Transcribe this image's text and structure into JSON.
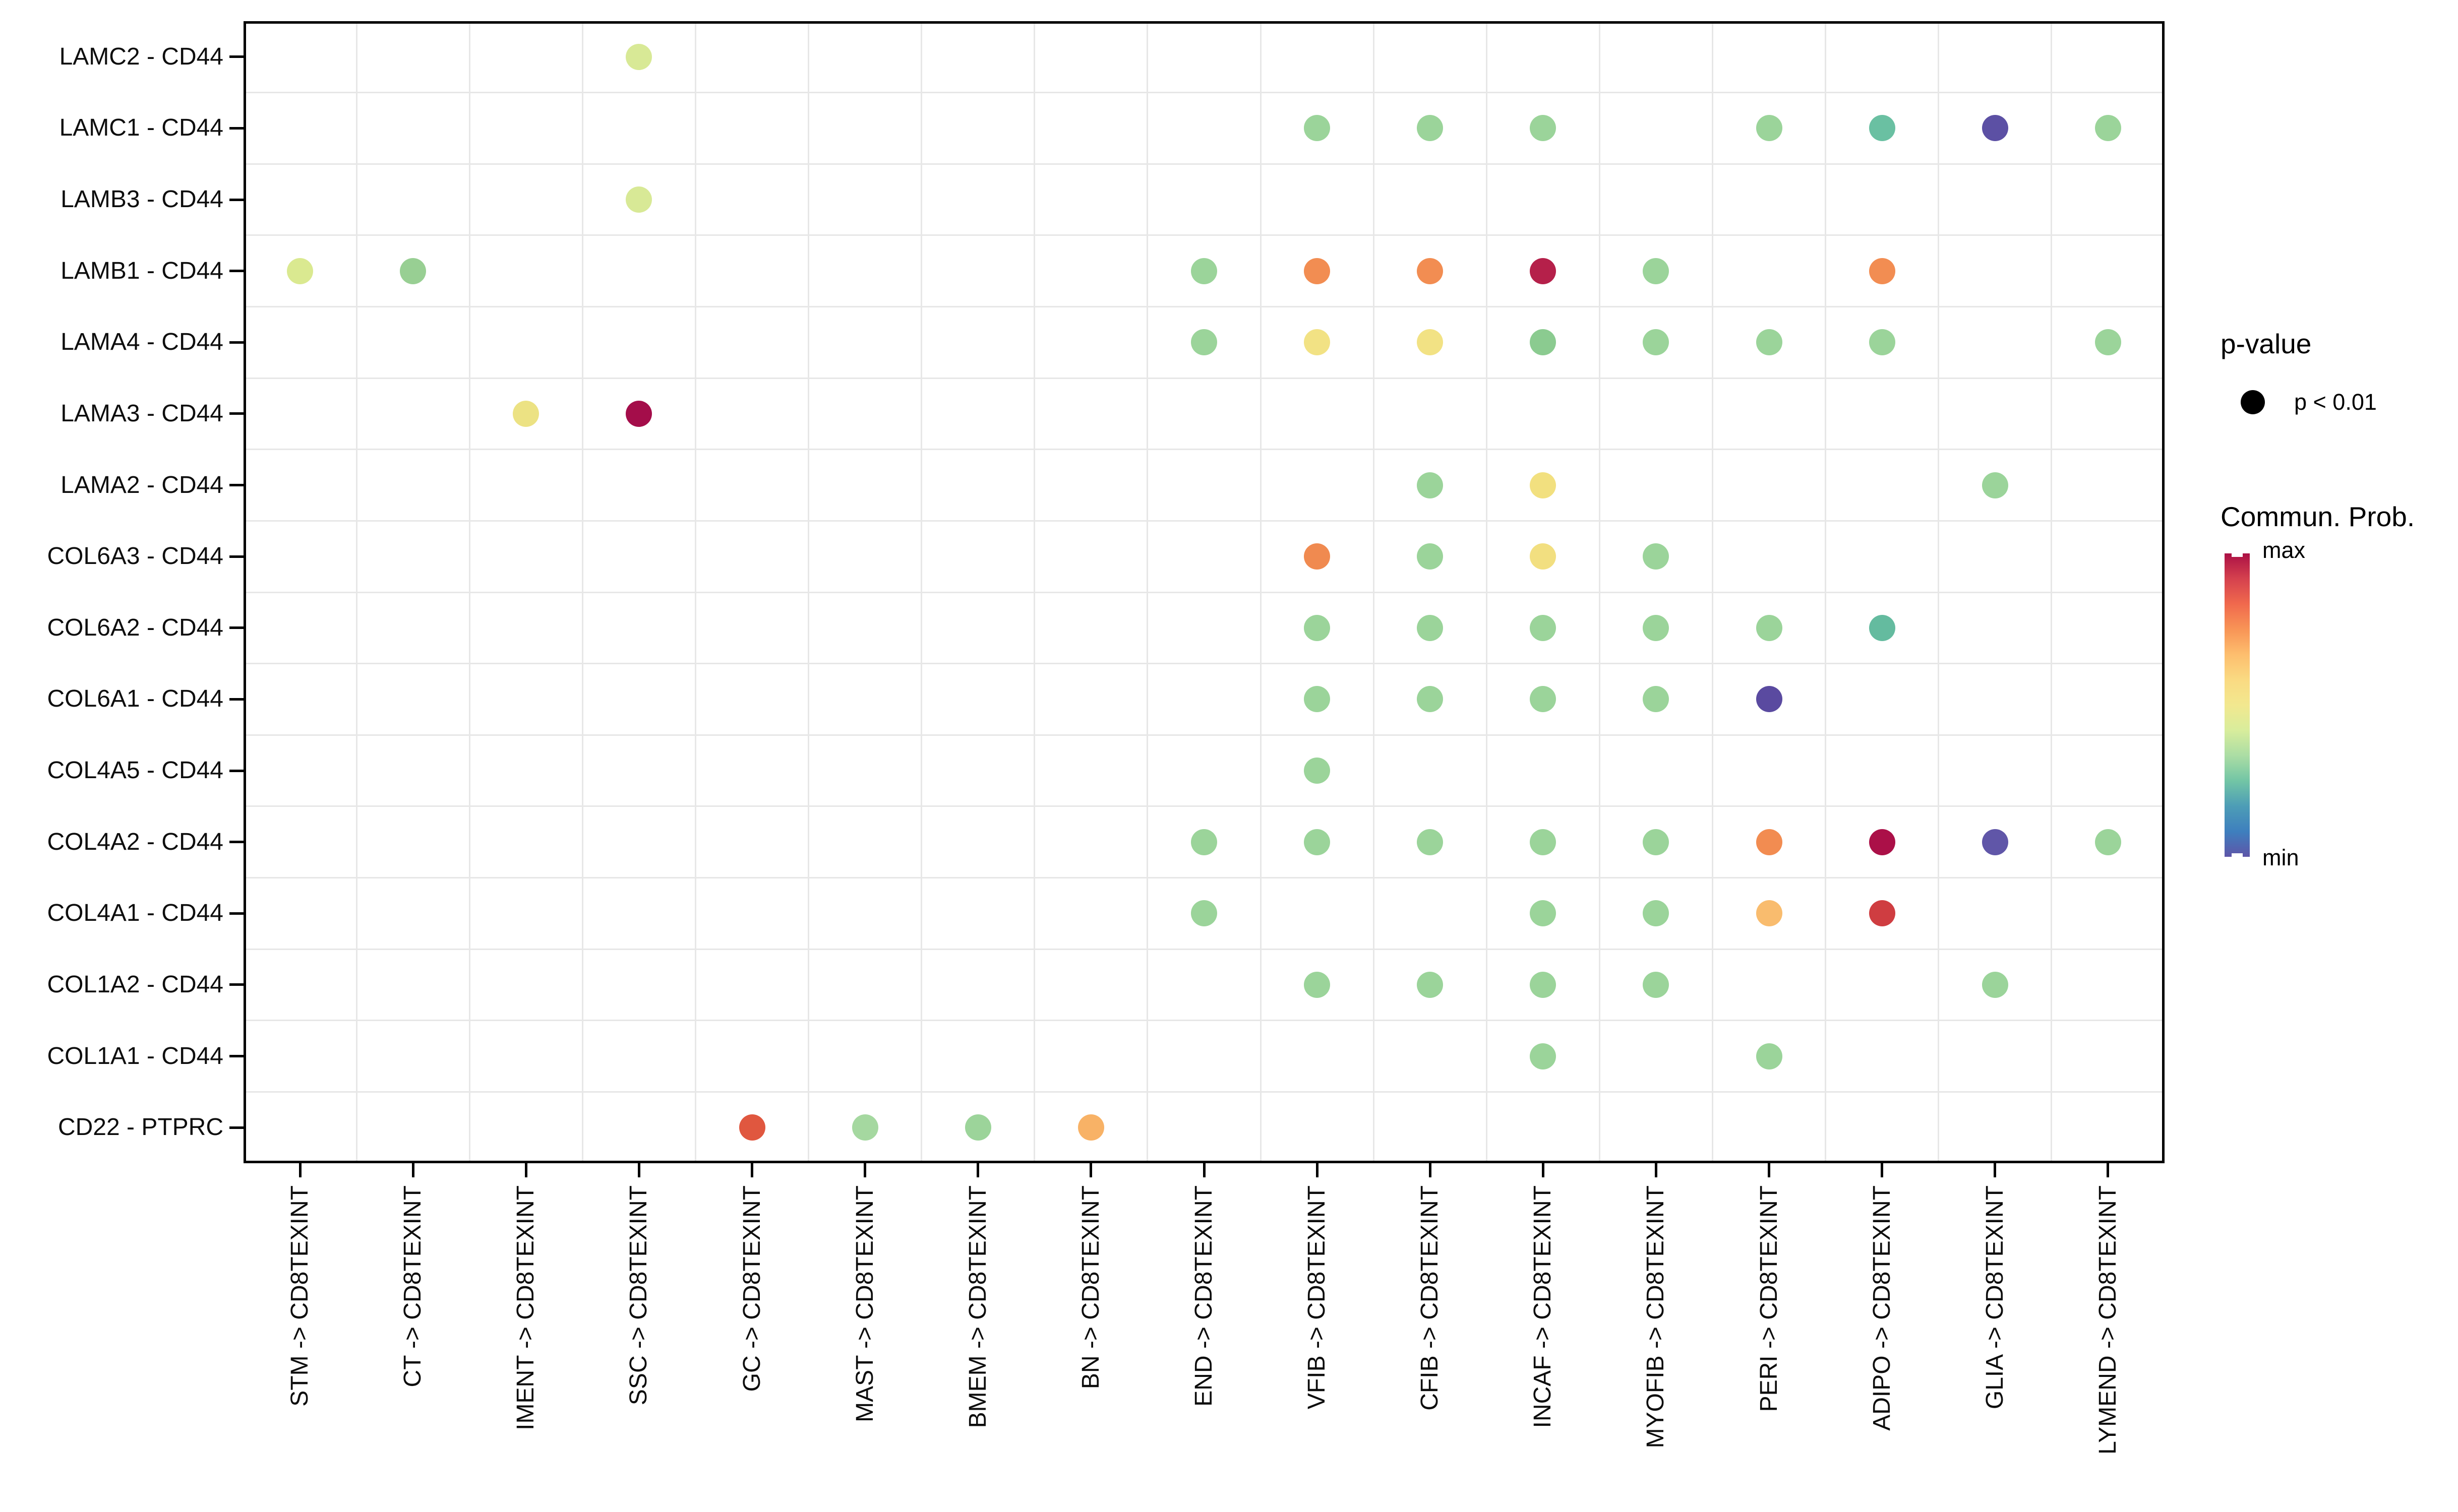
{
  "chart_data": {
    "type": "scatter",
    "subtype": "dot-matrix-bubble-plot",
    "x_categories": [
      "STM -> CD8TEXINT",
      "CT -> CD8TEXINT",
      "IMENT -> CD8TEXINT",
      "SSC -> CD8TEXINT",
      "GC -> CD8TEXINT",
      "MAST -> CD8TEXINT",
      "BMEM -> CD8TEXINT",
      "BN -> CD8TEXINT",
      "END -> CD8TEXINT",
      "VFIB -> CD8TEXINT",
      "CFIB -> CD8TEXINT",
      "INCAF -> CD8TEXINT",
      "MYOFIB -> CD8TEXINT",
      "PERI -> CD8TEXINT",
      "ADIPO -> CD8TEXINT",
      "GLIA -> CD8TEXINT",
      "LYMEND -> CD8TEXINT"
    ],
    "y_categories": [
      "LAMC2 - CD44",
      "LAMC1 - CD44",
      "LAMB3 - CD44",
      "LAMB1 - CD44",
      "LAMA4 - CD44",
      "LAMA3 - CD44",
      "LAMA2 - CD44",
      "COL6A3 - CD44",
      "COL6A2 - CD44",
      "COL6A1 - CD44",
      "COL4A5 - CD44",
      "COL4A2 - CD44",
      "COL4A1 - CD44",
      "COL1A2 - CD44",
      "COL1A1 - CD44",
      "CD22 - PTPRC"
    ],
    "grid": "boundary lines between categories",
    "legend_position": "right",
    "points": [
      {
        "row": "LAMC2 - CD44",
        "col": "SSC -> CD8TEXINT",
        "color": "#d8e996"
      },
      {
        "row": "LAMC1 - CD44",
        "col": "VFIB -> CD8TEXINT",
        "color": "#9bd49a"
      },
      {
        "row": "LAMC1 - CD44",
        "col": "CFIB -> CD8TEXINT",
        "color": "#9bd49a"
      },
      {
        "row": "LAMC1 - CD44",
        "col": "INCAF -> CD8TEXINT",
        "color": "#9bd49a"
      },
      {
        "row": "LAMC1 - CD44",
        "col": "PERI -> CD8TEXINT",
        "color": "#9bd49a"
      },
      {
        "row": "LAMC1 - CD44",
        "col": "ADIPO -> CD8TEXINT",
        "color": "#6ac0a2"
      },
      {
        "row": "LAMC1 - CD44",
        "col": "GLIA -> CD8TEXINT",
        "color": "#5c50a4"
      },
      {
        "row": "LAMC1 - CD44",
        "col": "LYMEND -> CD8TEXINT",
        "color": "#9bd49a"
      },
      {
        "row": "LAMB3 - CD44",
        "col": "SSC -> CD8TEXINT",
        "color": "#d8e996"
      },
      {
        "row": "LAMB1 - CD44",
        "col": "STM -> CD8TEXINT",
        "color": "#dae990"
      },
      {
        "row": "LAMB1 - CD44",
        "col": "CT -> CD8TEXINT",
        "color": "#98cf93"
      },
      {
        "row": "LAMB1 - CD44",
        "col": "END -> CD8TEXINT",
        "color": "#9bd49a"
      },
      {
        "row": "LAMB1 - CD44",
        "col": "VFIB -> CD8TEXINT",
        "color": "#f28d52"
      },
      {
        "row": "LAMB1 - CD44",
        "col": "CFIB -> CD8TEXINT",
        "color": "#f28d52"
      },
      {
        "row": "LAMB1 - CD44",
        "col": "INCAF -> CD8TEXINT",
        "color": "#b5204a"
      },
      {
        "row": "LAMB1 - CD44",
        "col": "MYOFIB -> CD8TEXINT",
        "color": "#9bd49a"
      },
      {
        "row": "LAMB1 - CD44",
        "col": "ADIPO -> CD8TEXINT",
        "color": "#f28d52"
      },
      {
        "row": "LAMA4 - CD44",
        "col": "END -> CD8TEXINT",
        "color": "#9bd49a"
      },
      {
        "row": "LAMA4 - CD44",
        "col": "VFIB -> CD8TEXINT",
        "color": "#f2e284"
      },
      {
        "row": "LAMA4 - CD44",
        "col": "CFIB -> CD8TEXINT",
        "color": "#f2e284"
      },
      {
        "row": "LAMA4 - CD44",
        "col": "INCAF -> CD8TEXINT",
        "color": "#8bcb90"
      },
      {
        "row": "LAMA4 - CD44",
        "col": "MYOFIB -> CD8TEXINT",
        "color": "#9bd49a"
      },
      {
        "row": "LAMA4 - CD44",
        "col": "PERI -> CD8TEXINT",
        "color": "#9bd49a"
      },
      {
        "row": "LAMA4 - CD44",
        "col": "ADIPO -> CD8TEXINT",
        "color": "#9bd49a"
      },
      {
        "row": "LAMA4 - CD44",
        "col": "LYMEND -> CD8TEXINT",
        "color": "#9bd49a"
      },
      {
        "row": "LAMA3 - CD44",
        "col": "IMENT -> CD8TEXINT",
        "color": "#ece283"
      },
      {
        "row": "LAMA3 - CD44",
        "col": "SSC -> CD8TEXINT",
        "color": "#a40d4a"
      },
      {
        "row": "LAMA2 - CD44",
        "col": "CFIB -> CD8TEXINT",
        "color": "#9bd49a"
      },
      {
        "row": "LAMA2 - CD44",
        "col": "INCAF -> CD8TEXINT",
        "color": "#f2e07f"
      },
      {
        "row": "LAMA2 - CD44",
        "col": "GLIA -> CD8TEXINT",
        "color": "#9bd49a"
      },
      {
        "row": "COL6A3 - CD44",
        "col": "VFIB -> CD8TEXINT",
        "color": "#f08a50"
      },
      {
        "row": "COL6A3 - CD44",
        "col": "CFIB -> CD8TEXINT",
        "color": "#9bd49a"
      },
      {
        "row": "COL6A3 - CD44",
        "col": "INCAF -> CD8TEXINT",
        "color": "#f2df80"
      },
      {
        "row": "COL6A3 - CD44",
        "col": "MYOFIB -> CD8TEXINT",
        "color": "#9bd49a"
      },
      {
        "row": "COL6A2 - CD44",
        "col": "VFIB -> CD8TEXINT",
        "color": "#9bd49a"
      },
      {
        "row": "COL6A2 - CD44",
        "col": "CFIB -> CD8TEXINT",
        "color": "#9bd49a"
      },
      {
        "row": "COL6A2 - CD44",
        "col": "INCAF -> CD8TEXINT",
        "color": "#9bd49a"
      },
      {
        "row": "COL6A2 - CD44",
        "col": "MYOFIB -> CD8TEXINT",
        "color": "#9bd49a"
      },
      {
        "row": "COL6A2 - CD44",
        "col": "PERI -> CD8TEXINT",
        "color": "#9bd49a"
      },
      {
        "row": "COL6A2 - CD44",
        "col": "ADIPO -> CD8TEXINT",
        "color": "#64bb9f"
      },
      {
        "row": "COL6A1 - CD44",
        "col": "VFIB -> CD8TEXINT",
        "color": "#9bd49a"
      },
      {
        "row": "COL6A1 - CD44",
        "col": "CFIB -> CD8TEXINT",
        "color": "#9bd49a"
      },
      {
        "row": "COL6A1 - CD44",
        "col": "INCAF -> CD8TEXINT",
        "color": "#9bd49a"
      },
      {
        "row": "COL6A1 - CD44",
        "col": "MYOFIB -> CD8TEXINT",
        "color": "#9bd49a"
      },
      {
        "row": "COL6A1 - CD44",
        "col": "PERI -> CD8TEXINT",
        "color": "#5a4aa0"
      },
      {
        "row": "COL4A5 - CD44",
        "col": "VFIB -> CD8TEXINT",
        "color": "#9bd49a"
      },
      {
        "row": "COL4A2 - CD44",
        "col": "END -> CD8TEXINT",
        "color": "#9bd49a"
      },
      {
        "row": "COL4A2 - CD44",
        "col": "VFIB -> CD8TEXINT",
        "color": "#9bd49a"
      },
      {
        "row": "COL4A2 - CD44",
        "col": "CFIB -> CD8TEXINT",
        "color": "#9bd49a"
      },
      {
        "row": "COL4A2 - CD44",
        "col": "INCAF -> CD8TEXINT",
        "color": "#9bd49a"
      },
      {
        "row": "COL4A2 - CD44",
        "col": "MYOFIB -> CD8TEXINT",
        "color": "#9bd49a"
      },
      {
        "row": "COL4A2 - CD44",
        "col": "PERI -> CD8TEXINT",
        "color": "#f28c51"
      },
      {
        "row": "COL4A2 - CD44",
        "col": "ADIPO -> CD8TEXINT",
        "color": "#ab1048"
      },
      {
        "row": "COL4A2 - CD44",
        "col": "GLIA -> CD8TEXINT",
        "color": "#6056a8"
      },
      {
        "row": "COL4A2 - CD44",
        "col": "LYMEND -> CD8TEXINT",
        "color": "#9bd49a"
      },
      {
        "row": "COL4A1 - CD44",
        "col": "END -> CD8TEXINT",
        "color": "#9bd49a"
      },
      {
        "row": "COL4A1 - CD44",
        "col": "INCAF -> CD8TEXINT",
        "color": "#9bd49a"
      },
      {
        "row": "COL4A1 - CD44",
        "col": "MYOFIB -> CD8TEXINT",
        "color": "#9bd49a"
      },
      {
        "row": "COL4A1 - CD44",
        "col": "PERI -> CD8TEXINT",
        "color": "#f9bc6e"
      },
      {
        "row": "COL4A1 - CD44",
        "col": "ADIPO -> CD8TEXINT",
        "color": "#cf3d41"
      },
      {
        "row": "COL1A2 - CD44",
        "col": "VFIB -> CD8TEXINT",
        "color": "#9bd49a"
      },
      {
        "row": "COL1A2 - CD44",
        "col": "CFIB -> CD8TEXINT",
        "color": "#9bd49a"
      },
      {
        "row": "COL1A2 - CD44",
        "col": "INCAF -> CD8TEXINT",
        "color": "#9bd49a"
      },
      {
        "row": "COL1A2 - CD44",
        "col": "MYOFIB -> CD8TEXINT",
        "color": "#9bd49a"
      },
      {
        "row": "COL1A2 - CD44",
        "col": "GLIA -> CD8TEXINT",
        "color": "#9bd49a"
      },
      {
        "row": "COL1A1 - CD44",
        "col": "INCAF -> CD8TEXINT",
        "color": "#9bd49a"
      },
      {
        "row": "COL1A1 - CD44",
        "col": "PERI -> CD8TEXINT",
        "color": "#9bd49a"
      },
      {
        "row": "CD22 - PTPRC",
        "col": "GC -> CD8TEXINT",
        "color": "#e0573f"
      },
      {
        "row": "CD22 - PTPRC",
        "col": "MAST -> CD8TEXINT",
        "color": "#a5d8a0"
      },
      {
        "row": "CD22 - PTPRC",
        "col": "BMEM -> CD8TEXINT",
        "color": "#9cd49a"
      },
      {
        "row": "CD22 - PTPRC",
        "col": "BN -> CD8TEXINT",
        "color": "#f8b266"
      }
    ]
  },
  "legend": {
    "p_value": {
      "title": "p-value",
      "dot_color": "#000000",
      "items": [
        {
          "label": "p < 0.01"
        }
      ]
    },
    "commun_prob": {
      "title": "Commun. Prob.",
      "max_label": "max",
      "min_label": "min",
      "gradient_top_to_bottom": [
        "#ab1045",
        "#d5414e",
        "#f0694d",
        "#f89456",
        "#fdbe6e",
        "#fada82",
        "#f2e88f",
        "#d8ed9c",
        "#abdda4",
        "#72c5a5",
        "#4d9db6",
        "#3e7fbe",
        "#5e55a8"
      ]
    }
  },
  "colors": {
    "background": "#ffffff",
    "panel_border": "#000000",
    "grid_line": "#e7e7e7",
    "axis_text": "#0d0d0d"
  }
}
